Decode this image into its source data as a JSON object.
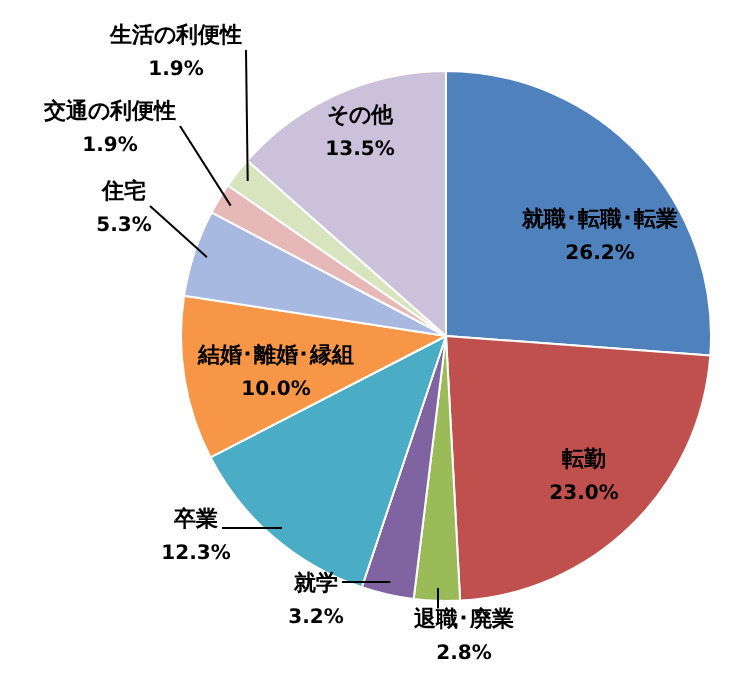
{
  "chart_data": {
    "type": "pie",
    "categories": [
      "就職･転職･転業",
      "転勤",
      "退職･廃業",
      "就学",
      "卒業",
      "結婚･離婚･縁組",
      "住宅",
      "交通の利便性",
      "生活の利便性",
      "その他"
    ],
    "values": [
      26.2,
      23.0,
      2.8,
      3.2,
      12.3,
      10.0,
      5.3,
      1.9,
      1.9,
      13.5
    ],
    "value_labels": [
      "26.2%",
      "23.0%",
      "2.8%",
      "3.2%",
      "12.3%",
      "10.0%",
      "5.3%",
      "1.9%",
      "1.9%",
      "13.5%"
    ],
    "colors": [
      "#4f81bd",
      "#c0504d",
      "#9bbb59",
      "#8064a2",
      "#4bacc6",
      "#f79646",
      "#a7b9e0",
      "#e6b9b8",
      "#d7e4bd",
      "#ccc1da"
    ],
    "legend": false
  }
}
